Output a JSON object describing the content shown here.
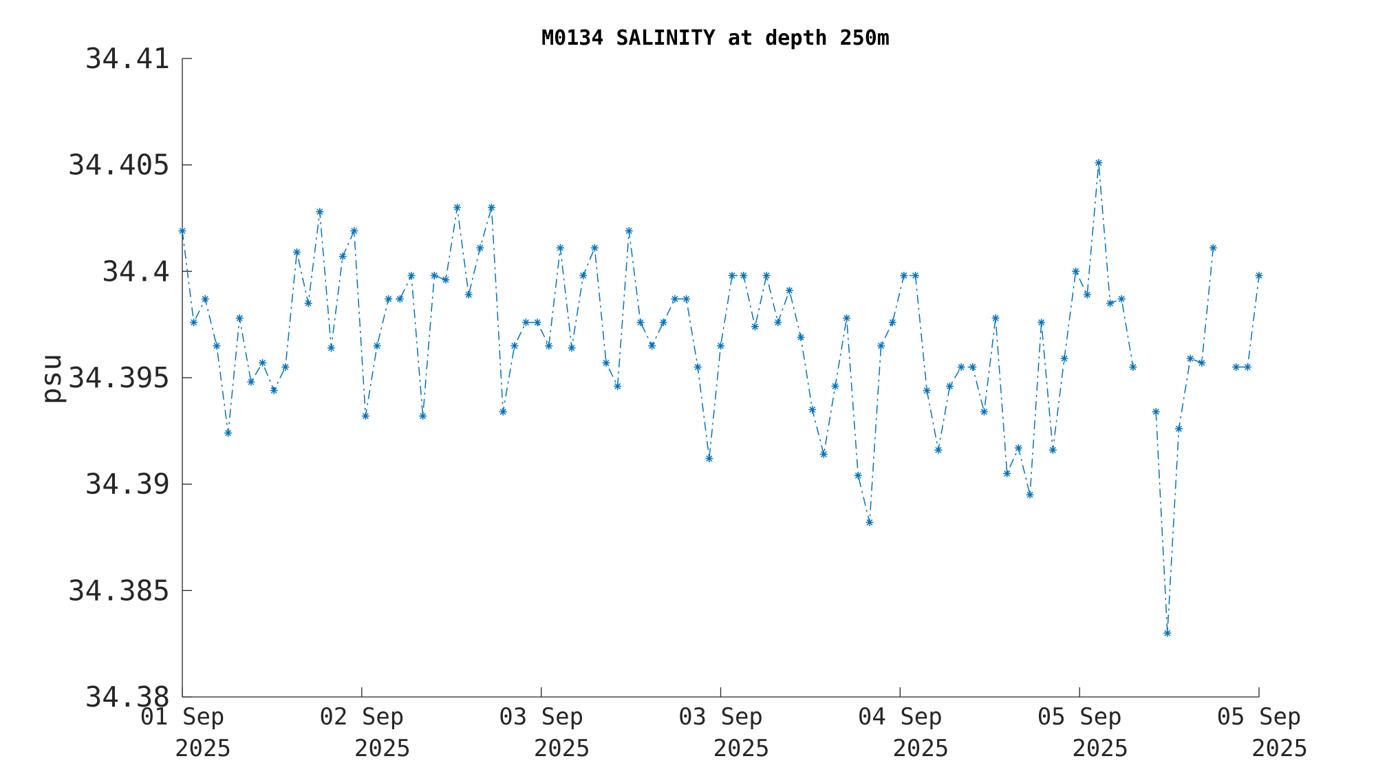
{
  "chart_data": {
    "type": "line",
    "title": "M0134 SALINITY at depth 250m",
    "xlabel": "",
    "ylabel": "psu",
    "ylim": [
      34.38,
      34.41
    ],
    "yticks": [
      "34.38",
      "34.385",
      "34.39",
      "34.395",
      "34.4",
      "34.405",
      "34.41"
    ],
    "xlim": [
      0,
      1
    ],
    "xticks": [
      {
        "line1": "01 Sep",
        "line2": "2025"
      },
      {
        "line1": "02 Sep",
        "line2": "2025"
      },
      {
        "line1": "03 Sep",
        "line2": "2025"
      },
      {
        "line1": "03 Sep",
        "line2": "2025"
      },
      {
        "line1": "04 Sep",
        "line2": "2025"
      },
      {
        "line1": "05 Sep",
        "line2": "2025"
      },
      {
        "line1": "05 Sep",
        "line2": "2025"
      }
    ],
    "series": [
      {
        "marker": "asterisk",
        "line_style": "dash-dot",
        "color": "#0072BD",
        "values": [
          34.4019,
          34.3976,
          34.3987,
          34.3965,
          34.3924,
          34.3978,
          34.3948,
          34.3957,
          34.3944,
          34.3955,
          34.4009,
          34.3985,
          34.4028,
          34.3964,
          34.4007,
          34.4019,
          34.3932,
          34.3965,
          34.3987,
          34.3987,
          34.3998,
          34.3932,
          34.3998,
          34.3996,
          34.403,
          34.3989,
          34.4011,
          34.403,
          34.3934,
          34.3965,
          34.3976,
          34.3976,
          34.3965,
          34.4011,
          34.3964,
          34.3998,
          34.4011,
          34.3957,
          34.3946,
          34.4019,
          34.3976,
          34.3965,
          34.3976,
          34.3987,
          34.3987,
          34.3955,
          34.3912,
          34.3965,
          34.3998,
          34.3998,
          34.3974,
          34.3998,
          34.3976,
          34.3991,
          34.3969,
          34.3935,
          34.3914,
          34.3946,
          34.3978,
          34.3904,
          34.3882,
          34.3965,
          34.3976,
          34.3998,
          34.3998,
          34.3944,
          34.3916,
          34.3946,
          34.3955,
          34.3955,
          34.3934,
          34.3978,
          34.3905,
          34.3917,
          34.3895,
          34.3976,
          34.3916,
          34.3959,
          34.4,
          34.3989,
          34.4051,
          34.3985,
          34.3987,
          34.3955,
          null,
          34.3934,
          34.383,
          34.3926,
          34.3959,
          34.3957,
          34.4011,
          null,
          34.3955,
          34.3955,
          34.3998
        ]
      }
    ]
  }
}
